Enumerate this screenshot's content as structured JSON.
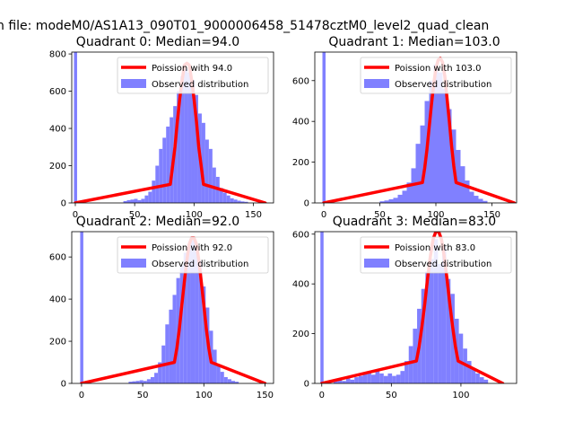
{
  "figure": {
    "suptitle": "n file: modeM0/AS1A13_090T01_9000006458_51478cztM0_level2_quad_clean"
  },
  "colors": {
    "hist": "#8080ff",
    "poisson": "#ff0000",
    "axes": "#000000",
    "background": "#ffffff"
  },
  "chart_data": [
    {
      "type": "bar",
      "title": "Quadrant 0: Median=94.0",
      "xlabel": "",
      "ylabel": "",
      "xlim": [
        -3,
        167
      ],
      "ylim": [
        0,
        810
      ],
      "xticks": [
        0,
        50,
        100,
        150
      ],
      "yticks": [
        0,
        200,
        400,
        600,
        800
      ],
      "median": 94.0,
      "legend": {
        "placement": "upper-right",
        "entries": [
          "Poission with 94.0",
          "Observed distribution"
        ]
      },
      "zero_bin_value": 810,
      "hist": {
        "name": "Observed distribution",
        "bin_width": 3,
        "x": [
          42,
          45,
          48,
          51,
          54,
          57,
          60,
          63,
          66,
          69,
          72,
          75,
          78,
          81,
          84,
          87,
          90,
          93,
          96,
          99,
          102,
          105,
          108,
          111,
          114,
          117,
          120,
          123,
          126,
          129,
          132,
          135,
          138,
          141,
          144
        ],
        "values": [
          10,
          15,
          18,
          22,
          15,
          22,
          40,
          60,
          120,
          200,
          290,
          350,
          410,
          460,
          520,
          600,
          680,
          720,
          700,
          660,
          580,
          480,
          430,
          340,
          290,
          190,
          140,
          80,
          55,
          40,
          25,
          18,
          12,
          8,
          6
        ]
      },
      "poisson": {
        "name": "Poission with 94.0",
        "peak": 750,
        "x": [
          0,
          80,
          82,
          84,
          86,
          88,
          90,
          92,
          94,
          96,
          98,
          100,
          102,
          104,
          106,
          108,
          160
        ],
        "values": [
          0,
          100,
          200,
          300,
          440,
          560,
          660,
          740,
          750,
          740,
          660,
          560,
          440,
          300,
          200,
          100,
          0
        ]
      }
    },
    {
      "type": "bar",
      "title": "Quadrant 1: Median=103.0",
      "xlabel": "",
      "ylabel": "",
      "xlim": [
        -8,
        172
      ],
      "ylim": [
        0,
        740
      ],
      "xticks": [
        0,
        50,
        100,
        150
      ],
      "yticks": [
        0,
        200,
        400,
        600
      ],
      "median": 103.0,
      "legend": {
        "placement": "upper-right",
        "entries": [
          "Poission with 103.0",
          "Observed distribution"
        ]
      },
      "zero_bin_value": 740,
      "hist": {
        "name": "Observed distribution",
        "bin_width": 4,
        "x": [
          52,
          56,
          60,
          64,
          68,
          72,
          76,
          80,
          84,
          88,
          92,
          96,
          100,
          104,
          108,
          112,
          116,
          120,
          124,
          128,
          132,
          136,
          140,
          144
        ],
        "values": [
          8,
          12,
          18,
          25,
          40,
          60,
          100,
          170,
          290,
          380,
          500,
          600,
          680,
          640,
          560,
          460,
          360,
          260,
          180,
          110,
          55,
          35,
          20,
          10
        ]
      },
      "poisson": {
        "name": "Poission with 103.0",
        "peak": 710,
        "x": [
          0,
          88,
          90,
          92,
          94,
          96,
          98,
          100,
          102,
          104,
          106,
          108,
          110,
          112,
          114,
          116,
          118,
          170
        ],
        "values": [
          0,
          100,
          170,
          260,
          370,
          480,
          580,
          660,
          700,
          710,
          690,
          620,
          510,
          400,
          280,
          180,
          100,
          0
        ]
      }
    },
    {
      "type": "bar",
      "title": "Quadrant 2: Median=92.0",
      "xlabel": "",
      "ylabel": "",
      "xlim": [
        -8,
        157
      ],
      "ylim": [
        0,
        720
      ],
      "xticks": [
        0,
        50,
        100,
        150
      ],
      "yticks": [
        0,
        200,
        400,
        600
      ],
      "median": 92.0,
      "legend": {
        "placement": "upper-right",
        "entries": [
          "Poission with 92.0",
          "Observed distribution"
        ]
      },
      "zero_bin_value": 720,
      "hist": {
        "name": "Observed distribution",
        "bin_width": 3,
        "x": [
          40,
          43,
          46,
          49,
          52,
          55,
          58,
          61,
          64,
          67,
          70,
          73,
          76,
          79,
          82,
          85,
          88,
          91,
          94,
          97,
          100,
          103,
          106,
          109,
          112,
          115,
          118,
          121,
          124,
          127
        ],
        "values": [
          8,
          10,
          12,
          15,
          12,
          20,
          30,
          50,
          100,
          180,
          280,
          350,
          420,
          500,
          560,
          620,
          660,
          680,
          660,
          580,
          460,
          360,
          250,
          160,
          90,
          55,
          30,
          20,
          12,
          8
        ]
      },
      "poisson": {
        "name": "Poission with 92.0",
        "peak": 690,
        "x": [
          0,
          76,
          78,
          80,
          82,
          84,
          86,
          88,
          90,
          92,
          94,
          96,
          98,
          100,
          102,
          104,
          106,
          150
        ],
        "values": [
          0,
          100,
          170,
          260,
          370,
          480,
          580,
          660,
          690,
          690,
          660,
          580,
          480,
          370,
          260,
          170,
          100,
          0
        ]
      }
    },
    {
      "type": "bar",
      "title": "Quadrant 3: Median=83.0",
      "xlabel": "",
      "ylabel": "",
      "xlim": [
        -5,
        140
      ],
      "ylim": [
        0,
        610
      ],
      "xticks": [
        0,
        50,
        100
      ],
      "yticks": [
        0,
        200,
        400,
        600
      ],
      "median": 83.0,
      "legend": {
        "placement": "upper-right",
        "entries": [
          "Poission with 83.0",
          "Observed distribution"
        ]
      },
      "zero_bin_value": 610,
      "hist": {
        "name": "Observed distribution",
        "bin_width": 3,
        "x": [
          10,
          13,
          16,
          19,
          22,
          25,
          28,
          31,
          34,
          37,
          40,
          43,
          46,
          49,
          52,
          55,
          58,
          61,
          64,
          67,
          70,
          73,
          76,
          79,
          82,
          85,
          88,
          91,
          94,
          97,
          100,
          103,
          106,
          109,
          112,
          115,
          118
        ],
        "values": [
          12,
          18,
          10,
          20,
          15,
          25,
          30,
          40,
          45,
          35,
          50,
          40,
          30,
          40,
          30,
          35,
          50,
          90,
          150,
          220,
          300,
          380,
          450,
          500,
          580,
          480,
          550,
          420,
          360,
          260,
          200,
          140,
          90,
          60,
          40,
          25,
          15
        ]
      },
      "poisson": {
        "name": "Poission with 83.0",
        "peak": 610,
        "x": [
          0,
          68,
          70,
          72,
          74,
          76,
          78,
          80,
          82,
          84,
          86,
          88,
          90,
          92,
          94,
          96,
          98,
          130
        ],
        "values": [
          0,
          90,
          150,
          230,
          320,
          420,
          510,
          580,
          610,
          610,
          580,
          510,
          420,
          320,
          230,
          150,
          90,
          0
        ]
      }
    }
  ]
}
